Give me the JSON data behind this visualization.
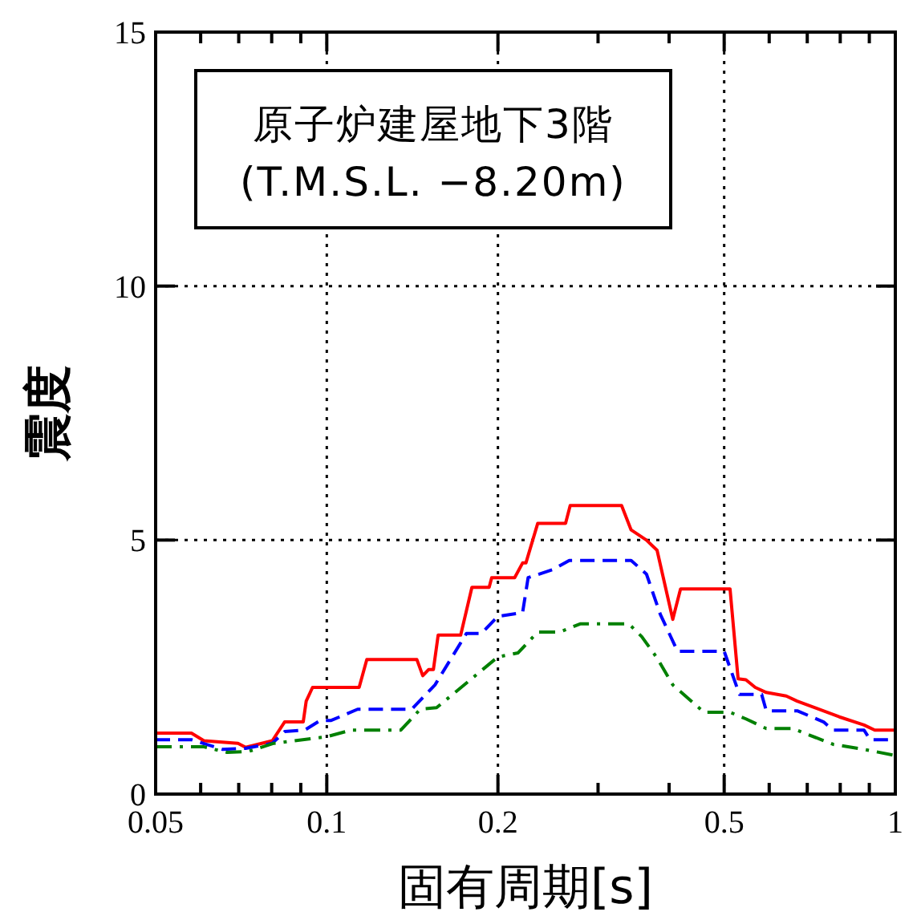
{
  "chart_data": {
    "type": "line",
    "xlabel": "固有周期[s]",
    "ylabel": "震度",
    "annotations": [
      "原子炉建屋地下3階",
      "(T.M.S.L. −8.20m)"
    ],
    "log": "x",
    "grid": true,
    "xlim": [
      0.05,
      1
    ],
    "xticks": [
      0.05,
      0.1,
      0.2,
      0.5,
      1,
      {
        "value": 0.06,
        "label": null
      },
      {
        "value": 0.07,
        "label": null
      },
      {
        "value": 0.08,
        "label": null
      },
      {
        "value": 0.09,
        "label": null
      },
      {
        "value": 0.3,
        "label": null
      },
      {
        "value": 0.4,
        "label": null
      },
      {
        "value": 0.6,
        "label": null
      },
      {
        "value": 0.7,
        "label": null
      },
      {
        "value": 0.8,
        "label": null
      },
      {
        "value": 0.9,
        "label": null
      }
    ],
    "ylim": [
      0,
      15
    ],
    "yticks": [
      0,
      5,
      10,
      15
    ],
    "series": [
      {
        "color": "#ff0000",
        "line_style": "solid",
        "x": [
          0.05,
          0.0578,
          0.0608,
          0.0698,
          0.072,
          0.0802,
          0.0843,
          0.0909,
          0.092,
          0.0944,
          0.114,
          0.1176,
          0.144,
          0.1475,
          0.151,
          0.154,
          0.157,
          0.172,
          0.18,
          0.193,
          0.195,
          0.214,
          0.221,
          0.224,
          0.235,
          0.263,
          0.268,
          0.33,
          0.343,
          0.365,
          0.381,
          0.406,
          0.419,
          0.512,
          0.529,
          0.546,
          0.567,
          0.593,
          0.643,
          0.672,
          0.797,
          0.881,
          0.92,
          1
        ],
        "values": [
          1.2,
          1.2,
          1.05,
          1.0,
          0.92,
          1.05,
          1.42,
          1.42,
          1.83,
          2.1,
          2.1,
          2.65,
          2.65,
          2.33,
          2.45,
          2.45,
          3.13,
          3.13,
          4.07,
          4.07,
          4.26,
          4.26,
          4.55,
          4.55,
          5.33,
          5.33,
          5.68,
          5.68,
          5.2,
          5.0,
          4.8,
          3.44,
          4.04,
          4.04,
          2.27,
          2.25,
          2.1,
          2.0,
          1.93,
          1.83,
          1.52,
          1.36,
          1.26,
          1.26
        ]
      },
      {
        "color": "#0000ff",
        "line_style": "dashed",
        "x": [
          0.05,
          0.0578,
          0.0656,
          0.072,
          0.0802,
          0.0843,
          0.0915,
          0.0974,
          0.1018,
          0.1133,
          0.141,
          0.155,
          0.176,
          0.187,
          0.2,
          0.221,
          0.226,
          0.25,
          0.267,
          0.343,
          0.365,
          0.386,
          0.414,
          0.5,
          0.532,
          0.582,
          0.593,
          0.672,
          0.748,
          0.777,
          0.881,
          0.903,
          1
        ],
        "values": [
          1.07,
          1.07,
          0.88,
          0.9,
          1.0,
          1.23,
          1.26,
          1.45,
          1.45,
          1.67,
          1.67,
          2.15,
          3.16,
          3.16,
          3.5,
          3.57,
          4.26,
          4.42,
          4.6,
          4.6,
          4.33,
          3.54,
          2.81,
          2.81,
          1.96,
          1.96,
          1.64,
          1.64,
          1.42,
          1.26,
          1.26,
          1.07,
          1.07
        ]
      },
      {
        "color": "#008000",
        "line_style": "dashdot",
        "x": [
          0.05,
          0.0608,
          0.0668,
          0.0729,
          0.0807,
          0.1,
          0.1105,
          0.135,
          0.146,
          0.156,
          0.2,
          0.217,
          0.235,
          0.257,
          0.279,
          0.34,
          0.358,
          0.381,
          0.406,
          0.461,
          0.512,
          0.546,
          0.593,
          0.66,
          0.777,
          0.881,
          1
        ],
        "values": [
          0.93,
          0.93,
          0.82,
          0.84,
          1.0,
          1.13,
          1.26,
          1.26,
          1.67,
          1.7,
          2.7,
          2.78,
          3.19,
          3.19,
          3.35,
          3.35,
          3.1,
          2.68,
          2.15,
          1.61,
          1.61,
          1.48,
          1.29,
          1.29,
          0.98,
          0.88,
          0.76
        ]
      }
    ]
  }
}
